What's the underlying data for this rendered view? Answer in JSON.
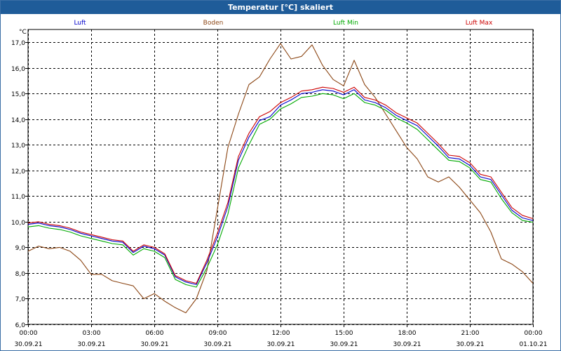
{
  "window": {
    "title": "Temperatur [°C] skaliert"
  },
  "chart_data": {
    "type": "line",
    "title": "Temperatur [°C] skaliert",
    "ylabel": "°C",
    "xlabel": "",
    "ylim": [
      6.0,
      17.5
    ],
    "xlim": [
      0,
      24
    ],
    "grid": true,
    "legend_position": "top",
    "y_ticks": [
      "6,0",
      "7,0",
      "8,0",
      "9,0",
      "10,0",
      "11,0",
      "12,0",
      "13,0",
      "14,0",
      "15,0",
      "16,0",
      "17,0"
    ],
    "x_ticks": [
      {
        "time": "00:00",
        "date": "30.09.21"
      },
      {
        "time": "03:00",
        "date": "30.09.21"
      },
      {
        "time": "06:00",
        "date": "30.09.21"
      },
      {
        "time": "09:00",
        "date": "30.09.21"
      },
      {
        "time": "12:00",
        "date": "30.09.21"
      },
      {
        "time": "15:00",
        "date": "30.09.21"
      },
      {
        "time": "18:00",
        "date": "30.09.21"
      },
      {
        "time": "21:00",
        "date": "30.09.21"
      },
      {
        "time": "00:00",
        "date": "01.10.21"
      }
    ],
    "x": [
      0,
      0.5,
      1,
      1.5,
      2,
      2.5,
      3,
      3.5,
      4,
      4.5,
      5,
      5.5,
      6,
      6.5,
      7,
      7.5,
      8,
      8.5,
      9,
      9.5,
      10,
      10.5,
      11,
      11.5,
      12,
      12.5,
      13,
      13.5,
      14,
      14.5,
      15,
      15.5,
      16,
      16.5,
      17,
      17.5,
      18,
      18.5,
      19,
      19.5,
      20,
      20.5,
      21,
      21.5,
      22,
      22.5,
      23,
      23.5,
      24
    ],
    "series": [
      {
        "name": "Luft",
        "color": "#0000cc",
        "values": [
          9.9,
          9.95,
          9.85,
          9.8,
          9.7,
          9.55,
          9.45,
          9.35,
          9.25,
          9.2,
          8.8,
          9.05,
          8.95,
          8.7,
          7.85,
          7.65,
          7.55,
          8.4,
          9.4,
          10.6,
          12.4,
          13.3,
          13.95,
          14.1,
          14.55,
          14.75,
          15.0,
          15.05,
          15.15,
          15.1,
          14.95,
          15.15,
          14.75,
          14.65,
          14.45,
          14.15,
          13.95,
          13.75,
          13.35,
          12.95,
          12.5,
          12.45,
          12.2,
          11.75,
          11.65,
          11.05,
          10.45,
          10.15,
          10.05
        ]
      },
      {
        "name": "Boden",
        "color": "#8b4513",
        "values": [
          8.85,
          9.05,
          8.95,
          9.0,
          8.85,
          8.5,
          7.95,
          7.95,
          7.7,
          7.6,
          7.5,
          7.0,
          7.2,
          6.9,
          6.65,
          6.45,
          7.0,
          8.1,
          10.5,
          12.9,
          14.2,
          15.35,
          15.65,
          16.35,
          16.95,
          16.35,
          16.45,
          16.9,
          16.1,
          15.55,
          15.3,
          16.3,
          15.35,
          14.85,
          14.2,
          13.55,
          12.9,
          12.45,
          11.75,
          11.55,
          11.75,
          11.35,
          10.85,
          10.35,
          9.6,
          8.55,
          8.35,
          8.05,
          7.6
        ]
      },
      {
        "name": "Luft Min",
        "color": "#00aa00",
        "values": [
          9.8,
          9.85,
          9.75,
          9.7,
          9.6,
          9.45,
          9.35,
          9.25,
          9.15,
          9.1,
          8.7,
          8.95,
          8.85,
          8.6,
          7.75,
          7.55,
          7.45,
          8.2,
          9.1,
          10.3,
          12.1,
          13.0,
          13.8,
          14.0,
          14.4,
          14.6,
          14.85,
          14.9,
          15.0,
          14.95,
          14.8,
          15.0,
          14.65,
          14.55,
          14.35,
          14.05,
          13.85,
          13.6,
          13.2,
          12.8,
          12.4,
          12.35,
          12.1,
          11.65,
          11.55,
          10.9,
          10.35,
          10.05,
          9.98
        ]
      },
      {
        "name": "Luft Max",
        "color": "#cc0000",
        "values": [
          9.95,
          10.0,
          9.9,
          9.85,
          9.75,
          9.6,
          9.5,
          9.4,
          9.3,
          9.25,
          8.85,
          9.1,
          9.0,
          8.75,
          7.9,
          7.7,
          7.6,
          8.5,
          9.55,
          10.75,
          12.55,
          13.45,
          14.1,
          14.3,
          14.65,
          14.85,
          15.1,
          15.15,
          15.25,
          15.2,
          15.05,
          15.25,
          14.85,
          14.75,
          14.55,
          14.25,
          14.05,
          13.85,
          13.45,
          13.05,
          12.6,
          12.55,
          12.3,
          11.85,
          11.75,
          11.15,
          10.55,
          10.25,
          10.12
        ]
      }
    ]
  }
}
